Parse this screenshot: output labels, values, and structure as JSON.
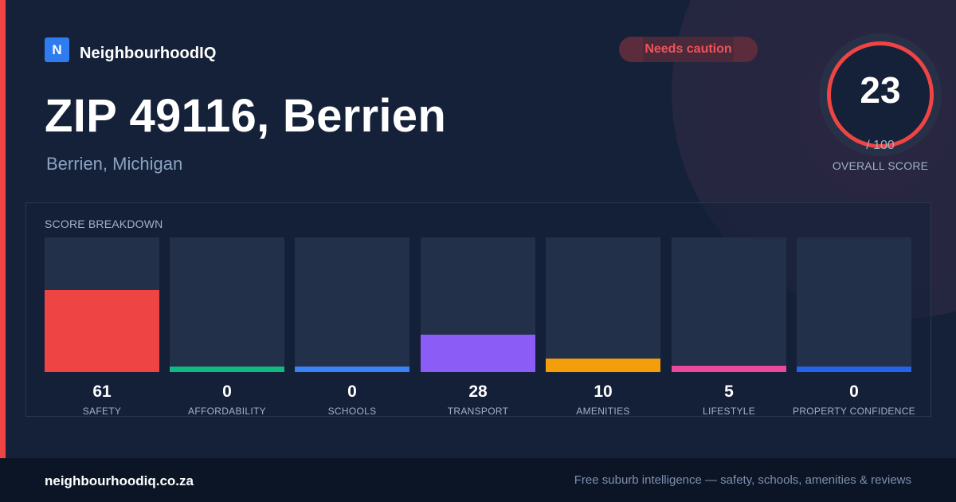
{
  "brand": {
    "logo_letter": "N",
    "name": "NeighbourhoodIQ"
  },
  "badge": {
    "label": "Needs caution",
    "color": "#f0535a"
  },
  "location": {
    "title": "ZIP 49116, Berrien",
    "subtitle": "Berrien, Michigan"
  },
  "overall": {
    "score": "23",
    "max_label": "/ 100",
    "caption": "OVERALL SCORE",
    "ring_color": "#ef4444"
  },
  "breakdown": {
    "title": "SCORE BREAKDOWN",
    "items": [
      {
        "label": "SAFETY",
        "value": "61",
        "fill_fraction": 0.61,
        "color": "#ef4444"
      },
      {
        "label": "AFFORDABILITY",
        "value": "0",
        "fill_fraction": 0,
        "color": "#10b981"
      },
      {
        "label": "SCHOOLS",
        "value": "0",
        "fill_fraction": 0,
        "color": "#3b82f6"
      },
      {
        "label": "TRANSPORT",
        "value": "28",
        "fill_fraction": 0.28,
        "color": "#8b5cf6"
      },
      {
        "label": "AMENITIES",
        "value": "10",
        "fill_fraction": 0.1,
        "color": "#f59e0b"
      },
      {
        "label": "LIFESTYLE",
        "value": "5",
        "fill_fraction": 0.05,
        "color": "#ec4899"
      },
      {
        "label": "PROPERTY CONFIDENCE",
        "value": "0",
        "fill_fraction": 0,
        "color": "#2563eb"
      }
    ]
  },
  "footer": {
    "url": "neighbourhoodiq.co.za",
    "tagline": "Free suburb intelligence — safety, schools, amenities & reviews"
  }
}
